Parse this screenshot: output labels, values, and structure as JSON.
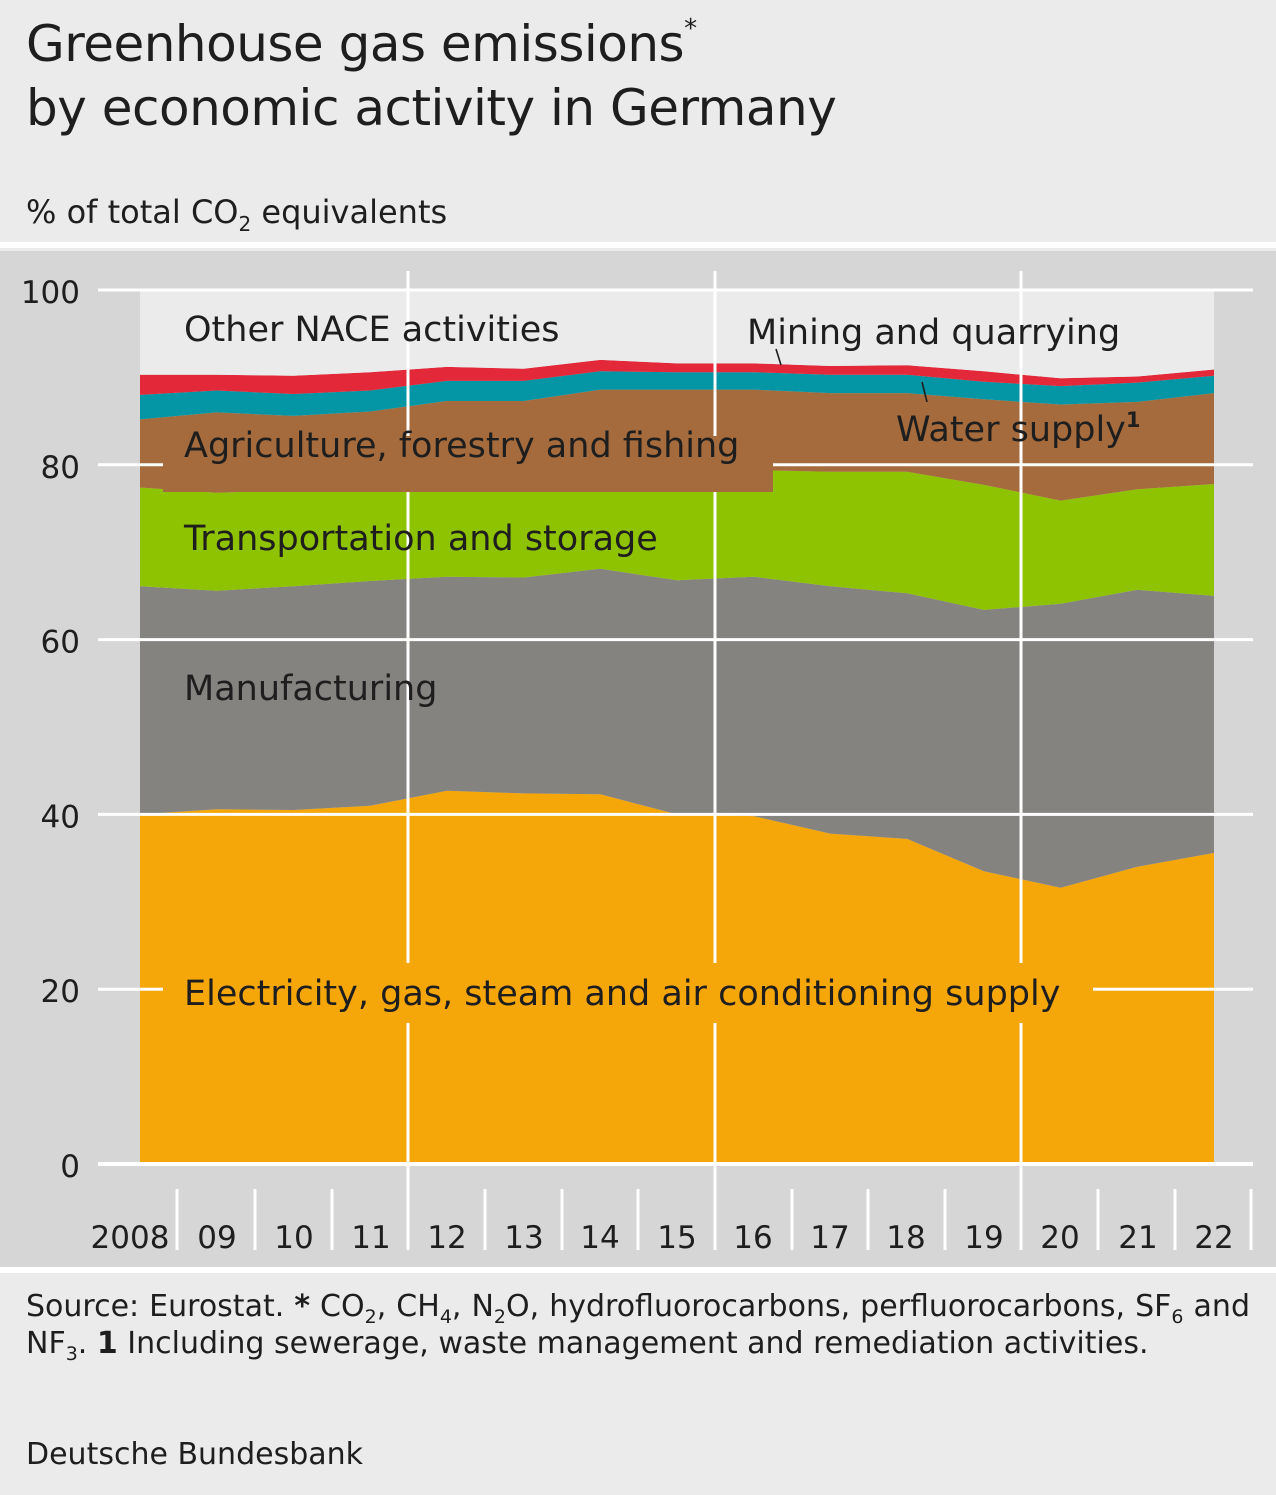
{
  "title": {
    "line1": "Greenhouse gas emissions",
    "marker": "*",
    "line2": "by economic activity in Germany"
  },
  "subtitle": {
    "pre": "% of total CO",
    "sub": "2",
    "post": " equivalents"
  },
  "footnote": {
    "source": "Source: Eurostat.",
    "star": "*",
    "t1": " CO",
    "s1": "2",
    "t2": ", CH",
    "s2": "4",
    "t3": ", N",
    "s3": "2",
    "t4": "O, hydrofluorocarbons, perfluorocarbons, SF",
    "s4": "6",
    "t5": " and NF",
    "s5": "3",
    "t6": ".",
    "n1": "1",
    "t7": " Including sewerage, waste management and remediation activities."
  },
  "publisher": "Deutsche Bundesbank",
  "colors": {
    "electricity": "#f5a70a",
    "manufacturing": "#858380",
    "transport": "#8dc300",
    "agriculture": "#a66b3c",
    "water": "#0496a4",
    "mining": "#e3283a",
    "other": "#ebebeb",
    "plot_bg": "#d6d6d6",
    "grid": "#ffffff"
  },
  "chart_data": {
    "type": "area",
    "stacked": true,
    "x": [
      "2008",
      "09",
      "10",
      "11",
      "12",
      "13",
      "14",
      "15",
      "16",
      "17",
      "18",
      "19",
      "20",
      "21",
      "22"
    ],
    "ylim": [
      0,
      100
    ],
    "yticks": [
      0,
      20,
      40,
      60,
      80,
      100
    ],
    "grid": true,
    "series": [
      {
        "key": "electricity",
        "name": "Electricity, gas, steam and air conditioning supply",
        "values": [
          40.0,
          40.6,
          40.5,
          41.0,
          42.7,
          42.4,
          42.3,
          40.0,
          39.8,
          37.8,
          37.2,
          33.5,
          31.6,
          34.0,
          35.6
        ]
      },
      {
        "key": "manufacturing",
        "name": "Manufacturing",
        "values": [
          26.1,
          25.0,
          25.6,
          25.7,
          24.5,
          24.7,
          25.8,
          26.8,
          27.4,
          28.3,
          28.1,
          29.9,
          32.5,
          31.7,
          29.4
        ]
      },
      {
        "key": "transport",
        "name": "Transportation and storage",
        "values": [
          11.3,
          11.2,
          11.0,
          10.6,
          11.5,
          11.4,
          11.3,
          12.6,
          12.2,
          13.1,
          13.9,
          14.3,
          11.8,
          11.5,
          12.8
        ]
      },
      {
        "key": "agriculture",
        "name": "Agriculture, forestry and fishing",
        "values": [
          7.8,
          9.2,
          8.5,
          8.8,
          8.6,
          8.8,
          9.2,
          9.2,
          9.2,
          9.0,
          9.0,
          9.8,
          11.0,
          10.0,
          10.4
        ]
      },
      {
        "key": "water",
        "name": "Water supply",
        "values": [
          2.8,
          2.5,
          2.5,
          2.4,
          2.3,
          2.3,
          2.1,
          2.0,
          2.0,
          2.1,
          2.1,
          2.0,
          2.1,
          2.2,
          2.0
        ]
      },
      {
        "key": "mining",
        "name": "Mining and quarrying",
        "values": [
          2.3,
          1.8,
          2.1,
          2.1,
          1.6,
          1.4,
          1.3,
          1.0,
          1.0,
          1.0,
          1.1,
          1.2,
          0.9,
          0.7,
          0.7
        ]
      },
      {
        "key": "other",
        "name": "Other NACE activities",
        "values": [
          9.7,
          9.7,
          9.8,
          9.4,
          8.8,
          9.0,
          8.0,
          8.4,
          8.4,
          8.7,
          8.6,
          9.3,
          10.1,
          9.9,
          9.1
        ]
      }
    ],
    "labels": {
      "electricity": "Electricity, gas, steam and air conditioning supply",
      "manufacturing": "Manufacturing",
      "transport": "Transportation and storage",
      "agriculture": "Agriculture, forestry and fishing",
      "water_main": "Water supply",
      "water_sup": "1",
      "mining": "Mining and quarrying",
      "other": "Other NACE activities"
    }
  }
}
